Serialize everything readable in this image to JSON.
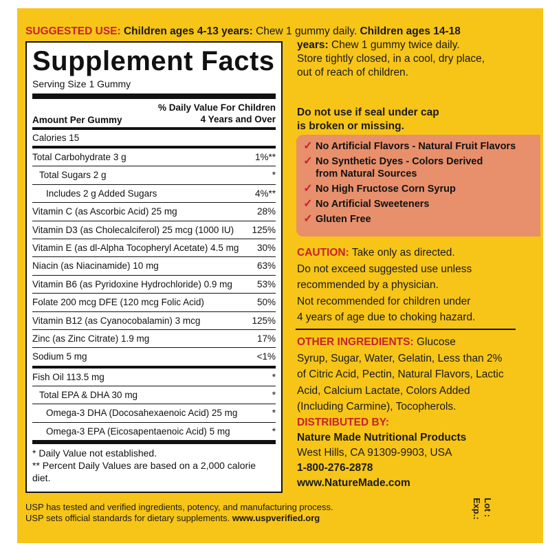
{
  "suggested_use": {
    "label": "SUGGESTED USE:",
    "group1": "Children ages 4-13 years:",
    "dose1": "Chew 1 gummy daily.",
    "group2_a": "Children ages 14-18",
    "group2_b": "years:",
    "dose2": "Chew 1 gummy twice daily.",
    "storage_1": "Store tightly closed, in a cool, dry place,",
    "storage_2": "out of reach of children.",
    "warning_1": "Do not use if seal under cap",
    "warning_2": "is broken or missing."
  },
  "facts": {
    "title": "Supplement Facts",
    "serving": "Serving Size 1 Gummy",
    "amount_header": "Amount Per Gummy",
    "dv_header_1": "% Daily Value For Children",
    "dv_header_2": "4 Years and Over",
    "calories": "Calories 15",
    "rows": [
      {
        "name": "Total Carbohydrate  3 g",
        "dv": "1%**"
      },
      {
        "name": "Total Sugars  2 g",
        "dv": "*"
      },
      {
        "name": "Includes  2 g Added Sugars",
        "dv": "4%**"
      },
      {
        "name": "Vitamin C (as Ascorbic Acid)  25 mg",
        "dv": "28%"
      },
      {
        "name": "Vitamin D3 (as Cholecalciferol)  25 mcg (1000 IU)",
        "dv": "125%"
      },
      {
        "name": "Vitamin E (as dl-Alpha Tocopheryl Acetate)  4.5 mg",
        "dv": "30%"
      },
      {
        "name": "Niacin (as Niacinamide)  10 mg",
        "dv": "63%"
      },
      {
        "name": "Vitamin B6 (as Pyridoxine Hydrochloride)  0.9 mg",
        "dv": "53%"
      },
      {
        "name": "Folate 200 mcg DFE (120 mcg Folic Acid)",
        "dv": "50%"
      },
      {
        "name": "Vitamin B12 (as Cyanocobalamin)  3 mcg",
        "dv": "125%"
      },
      {
        "name": "Zinc (as Zinc Citrate)  1.9 mg",
        "dv": "17%"
      },
      {
        "name": "Sodium  5 mg",
        "dv": "<1%"
      },
      {
        "name": "Fish Oil  113.5 mg",
        "dv": "*"
      },
      {
        "name": "Total EPA & DHA  30 mg",
        "dv": "*"
      },
      {
        "name": "Omega-3 DHA (Docosahexaenoic Acid)  25 mg",
        "dv": "*"
      },
      {
        "name": "Omega-3 EPA (Eicosapentaenoic Acid)  5 mg",
        "dv": "*"
      }
    ],
    "footnote_1": "* Daily Value not established.",
    "footnote_2": "** Percent Daily Values are based on a 2,000 calorie diet."
  },
  "claims": [
    "No Artificial Flavors - Natural Fruit Flavors",
    "No Synthetic Dyes - Colors Derived",
    "from Natural Sources",
    "No High Fructose Corn Syrup",
    "No Artificial Sweeteners",
    "Gluten Free"
  ],
  "check_glyph": "✓",
  "caution": {
    "label": "CAUTION:",
    "line1": "Take only as directed.",
    "line2": "Do not exceed suggested use unless",
    "line3": "recommended by a physician.",
    "line4": "Not recommended for children under",
    "line5": "4 years of age due to choking hazard."
  },
  "other_ingredients": {
    "label": "OTHER INGREDIENTS:",
    "line1": "Glucose",
    "line2": "Syrup, Sugar, Water, Gelatin, Less than 2%",
    "line3": "of Citric Acid, Pectin, Natural Flavors, Lactic",
    "line4": "Acid, Calcium Lactate, Colors Added",
    "line5": "(Including Carmine), Tocopherols."
  },
  "distributed": {
    "label": "DISTRIBUTED BY:",
    "company": "Nature Made Nutritional Products",
    "address": "West Hills, CA 91309-9903, USA",
    "phone": "1-800-276-2878",
    "website": "www.NatureMade.com"
  },
  "usp": {
    "line1": "USP has tested and verified ingredients, potency, and manufacturing process.",
    "line2_a": "USP sets official standards for dietary supplements.",
    "line2_b": "www.uspverified.org"
  },
  "lot_label": "Lot :",
  "exp_label": "Exp.:",
  "colors": {
    "background": "#f7c518",
    "accent_red": "#c8202e",
    "claims_box": "#e88f6c"
  }
}
